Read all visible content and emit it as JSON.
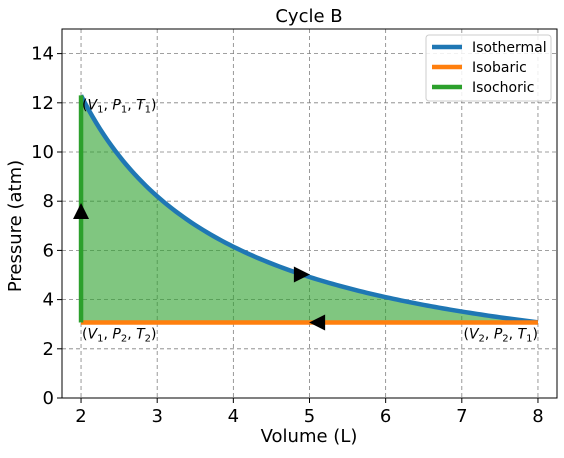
{
  "chart_data": {
    "type": "line",
    "title": "Cycle B",
    "xlabel": "Volume (L)",
    "ylabel": "Pressure (atm)",
    "xlim": [
      1.75,
      8.25
    ],
    "ylim": [
      0,
      15
    ],
    "xticks": [
      2,
      3,
      4,
      5,
      6,
      7,
      8
    ],
    "yticks": [
      0,
      2,
      4,
      6,
      8,
      10,
      12,
      14
    ],
    "grid": true,
    "legend_position": "top-right",
    "series": [
      {
        "name": "Isothermal",
        "kind": "isothermal",
        "color": "#1f77b4",
        "points": [
          [
            2,
            12.3
          ],
          [
            2.5,
            9.84
          ],
          [
            3,
            8.2
          ],
          [
            4,
            6.15
          ],
          [
            5,
            4.92
          ],
          [
            6,
            4.1
          ],
          [
            7,
            3.51
          ],
          [
            8,
            3.07
          ]
        ]
      },
      {
        "name": "Isobaric",
        "kind": "isobaric",
        "color": "#ff7f0e",
        "points": [
          [
            8,
            3.07
          ],
          [
            2,
            3.07
          ]
        ]
      },
      {
        "name": "Isochoric",
        "kind": "isochoric",
        "color": "#2ca02c",
        "points": [
          [
            2,
            3.07
          ],
          [
            2,
            12.3
          ]
        ]
      }
    ],
    "fill": {
      "color": "#2ca02c",
      "opacity": 0.6
    },
    "arrows": [
      {
        "x": 4.9,
        "y": 5.02,
        "direction": "right"
      },
      {
        "x": 5.1,
        "y": 3.07,
        "direction": "left"
      },
      {
        "x": 2.0,
        "y": 7.6,
        "direction": "up"
      }
    ],
    "state_labels": [
      {
        "V": "V",
        "P": "P",
        "T": "T",
        "vsub": "1",
        "psub": "1",
        "tsub": "1",
        "x": 2.0,
        "y": 12.3
      },
      {
        "V": "V",
        "P": "P",
        "T": "T",
        "vsub": "1",
        "psub": "2",
        "tsub": "2",
        "x": 2.0,
        "y": 3.07
      },
      {
        "V": "V",
        "P": "P",
        "T": "T",
        "vsub": "2",
        "psub": "2",
        "tsub": "1",
        "x": 8.0,
        "y": 3.07
      }
    ]
  }
}
